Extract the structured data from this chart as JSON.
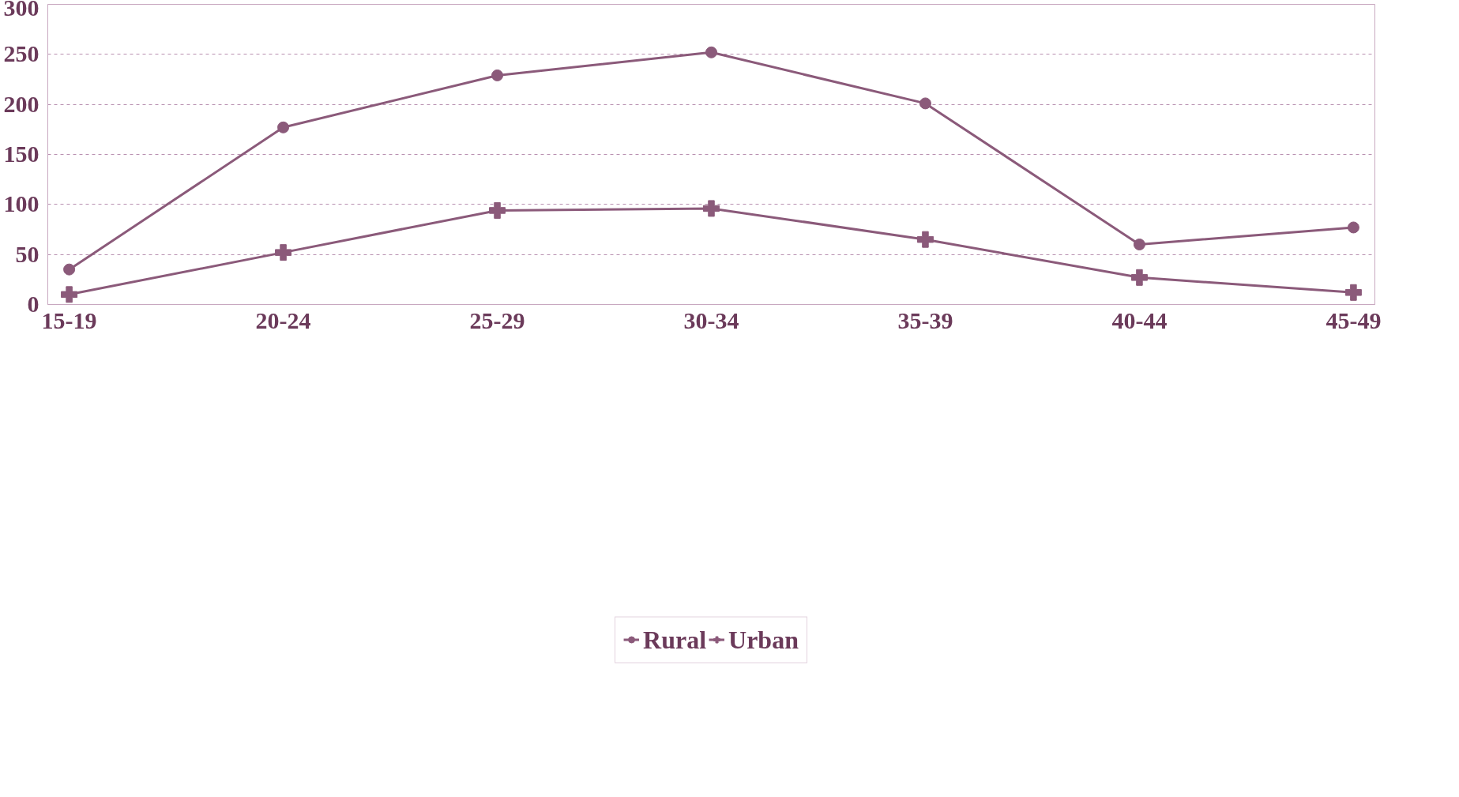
{
  "chart_data": {
    "type": "line",
    "categories": [
      "15-19",
      "20-24",
      "25-29",
      "30-34",
      "35-39",
      "40-44",
      "45-49"
    ],
    "series": [
      {
        "name": "Rural",
        "color": "#8b5a7a",
        "marker": "circle",
        "values": [
          35,
          177,
          229,
          252,
          201,
          60,
          77
        ]
      },
      {
        "name": "Urban",
        "color": "#8b5a7a",
        "marker": "cross",
        "values": [
          10,
          52,
          94,
          96,
          65,
          27,
          12
        ]
      }
    ],
    "ylim": [
      0,
      300
    ],
    "yticks": [
      0,
      50,
      100,
      150,
      200,
      250,
      300
    ],
    "grid": "y",
    "legend": "bottom",
    "line_style": "solid"
  }
}
